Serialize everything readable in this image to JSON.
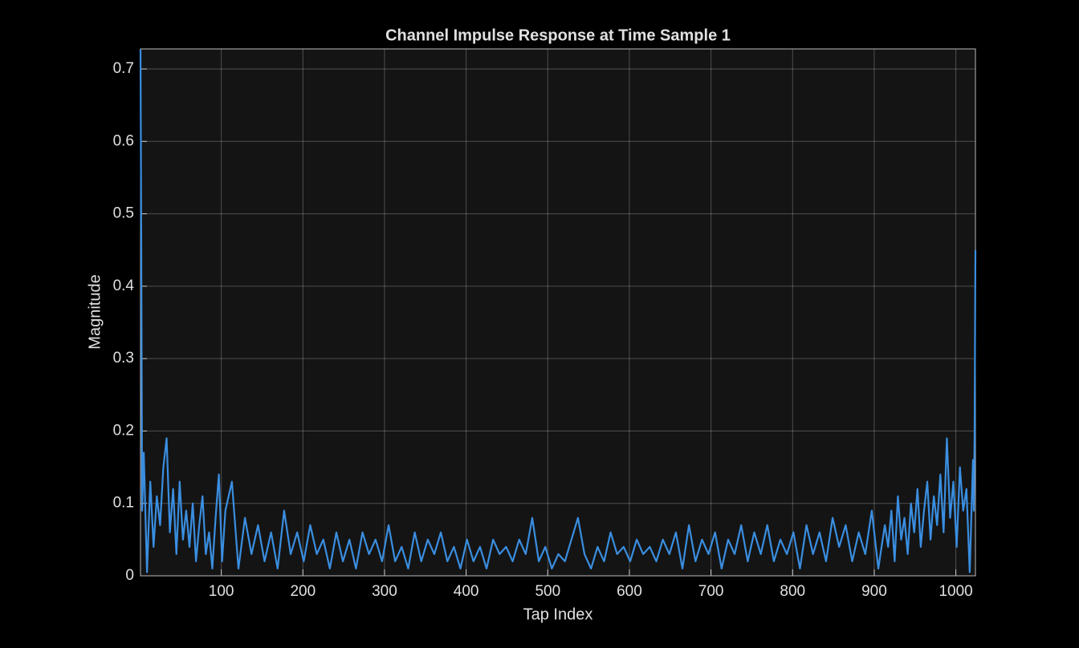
{
  "chart_data": {
    "type": "line",
    "title": "Channel Impulse Response at Time Sample 1",
    "xlabel": "Tap Index",
    "ylabel": "Magnitude",
    "xlim": [
      1,
      1024
    ],
    "ylim": [
      0,
      0.7277
    ],
    "xticks": [
      100,
      200,
      300,
      400,
      500,
      600,
      700,
      800,
      900,
      1000
    ],
    "yticks": [
      0,
      0.1,
      0.2,
      0.3,
      0.4,
      0.5,
      0.6,
      0.7
    ],
    "grid": true,
    "x": [
      1,
      2,
      3,
      5,
      9,
      13,
      17,
      21,
      25,
      29,
      33,
      37,
      41,
      45,
      49,
      53,
      57,
      61,
      65,
      69,
      73,
      77,
      81,
      85,
      89,
      93,
      97,
      101,
      105,
      113,
      121,
      129,
      137,
      145,
      153,
      161,
      169,
      177,
      185,
      193,
      201,
      209,
      217,
      225,
      233,
      241,
      249,
      257,
      265,
      273,
      281,
      289,
      297,
      305,
      313,
      321,
      329,
      337,
      345,
      353,
      361,
      369,
      377,
      385,
      393,
      401,
      409,
      417,
      425,
      433,
      441,
      449,
      457,
      465,
      473,
      481,
      489,
      497,
      505,
      513,
      521,
      529,
      537,
      545,
      553,
      561,
      569,
      577,
      585,
      593,
      601,
      609,
      617,
      625,
      633,
      641,
      649,
      657,
      665,
      673,
      681,
      689,
      697,
      705,
      713,
      721,
      729,
      737,
      745,
      753,
      761,
      769,
      777,
      785,
      793,
      801,
      809,
      817,
      825,
      833,
      841,
      849,
      857,
      865,
      873,
      881,
      889,
      897,
      905,
      913,
      917,
      921,
      925,
      929,
      933,
      937,
      941,
      945,
      949,
      953,
      957,
      961,
      965,
      969,
      973,
      977,
      981,
      985,
      989,
      993,
      997,
      1001,
      1005,
      1009,
      1013,
      1017,
      1021,
      1022,
      1023,
      1024
    ],
    "series": [
      {
        "name": "Magnitude",
        "color": "#3a8ee0",
        "values": [
          0.727,
          0.44,
          0.09,
          0.17,
          0.005,
          0.13,
          0.04,
          0.11,
          0.07,
          0.15,
          0.19,
          0.06,
          0.12,
          0.03,
          0.13,
          0.05,
          0.09,
          0.04,
          0.1,
          0.02,
          0.07,
          0.11,
          0.03,
          0.06,
          0.01,
          0.08,
          0.14,
          0.02,
          0.09,
          0.13,
          0.01,
          0.08,
          0.03,
          0.07,
          0.02,
          0.06,
          0.01,
          0.09,
          0.03,
          0.06,
          0.02,
          0.07,
          0.03,
          0.05,
          0.01,
          0.06,
          0.02,
          0.05,
          0.01,
          0.06,
          0.03,
          0.05,
          0.02,
          0.07,
          0.02,
          0.04,
          0.01,
          0.06,
          0.02,
          0.05,
          0.03,
          0.06,
          0.02,
          0.04,
          0.01,
          0.05,
          0.02,
          0.04,
          0.01,
          0.05,
          0.03,
          0.04,
          0.02,
          0.05,
          0.03,
          0.08,
          0.02,
          0.04,
          0.01,
          0.03,
          0.02,
          0.05,
          0.08,
          0.03,
          0.01,
          0.04,
          0.02,
          0.06,
          0.03,
          0.04,
          0.02,
          0.05,
          0.03,
          0.04,
          0.02,
          0.05,
          0.03,
          0.06,
          0.01,
          0.07,
          0.02,
          0.05,
          0.03,
          0.06,
          0.01,
          0.05,
          0.03,
          0.07,
          0.02,
          0.06,
          0.03,
          0.07,
          0.02,
          0.05,
          0.03,
          0.06,
          0.01,
          0.07,
          0.03,
          0.06,
          0.02,
          0.08,
          0.04,
          0.07,
          0.02,
          0.06,
          0.03,
          0.09,
          0.01,
          0.07,
          0.04,
          0.09,
          0.02,
          0.11,
          0.05,
          0.08,
          0.03,
          0.1,
          0.06,
          0.12,
          0.04,
          0.09,
          0.13,
          0.05,
          0.11,
          0.07,
          0.14,
          0.06,
          0.19,
          0.08,
          0.13,
          0.04,
          0.15,
          0.09,
          0.12,
          0.005,
          0.16,
          0.09,
          0.2,
          0.45
        ]
      }
    ]
  }
}
